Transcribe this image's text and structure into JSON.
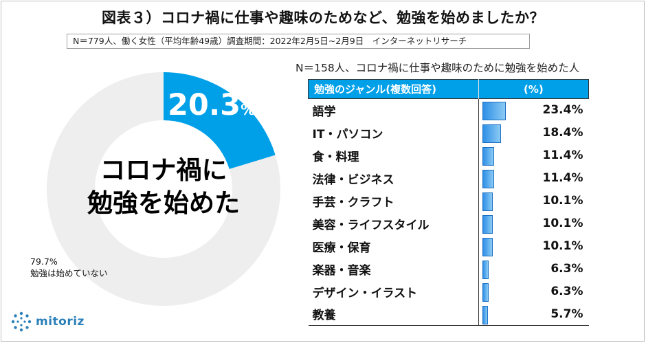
{
  "title": "図表３）コロナ禍に仕事や趣味のためなど、勉強を始めましたか？",
  "survey_note": "N＝779人、働く女性（平均年齢49歳）調査期間：2022年2月5日~2月9日　インターネットリサーチ",
  "pie": {
    "center_label_line1": "コロナ禍に",
    "center_label_line2": "勉強を始めた",
    "highlight_value": "20.3",
    "highlight_unit": "%",
    "rest_value": "79.7%",
    "rest_label": "勉強は始めていない",
    "colors": {
      "highlight": "#00a0e9",
      "rest": "#eeeeee"
    }
  },
  "chart_data": [
    {
      "type": "pie",
      "title": "コロナ禍に勉強を始めた",
      "slices": [
        {
          "label": "コロナ禍に勉強を始めた",
          "value": 20.3
        },
        {
          "label": "勉強は始めていない",
          "value": 79.7
        }
      ]
    },
    {
      "type": "bar",
      "title": "N＝158人、コロナ禍に仕事や趣味のために勉強を始めた人",
      "columns": [
        "勉強のジャンル(複数回答)",
        "(%)"
      ],
      "categories": [
        "語学",
        "IT・パソコン",
        "食・料理",
        "法律・ビジネス",
        "手芸・クラフト",
        "美容・ライフスタイル",
        "医療・保育",
        "楽器・音楽",
        "デザイン・イラスト",
        "教養"
      ],
      "values": [
        23.4,
        18.4,
        11.4,
        11.4,
        10.1,
        10.1,
        10.1,
        6.3,
        6.3,
        5.7
      ],
      "value_labels": [
        "23.4%",
        "18.4%",
        "11.4%",
        "11.4%",
        "10.1%",
        "10.1%",
        "10.1%",
        "6.3%",
        "6.3%",
        "5.7%"
      ],
      "xlim": [
        0,
        100
      ]
    }
  ],
  "logo": {
    "text": "mitoriz"
  }
}
